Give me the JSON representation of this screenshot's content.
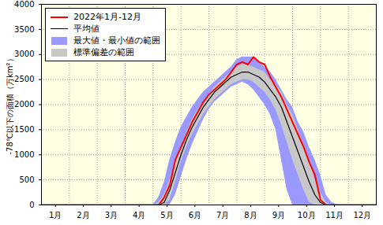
{
  "chart_data": {
    "type": "line",
    "y_label": "-78℃以下の面積（万km²）",
    "x": [
      0,
      4.0,
      4.2,
      4.4,
      4.6,
      4.8,
      5.0,
      5.2,
      5.4,
      5.6,
      5.8,
      6.0,
      6.2,
      6.4,
      6.6,
      6.8,
      7.0,
      7.2,
      7.4,
      7.6,
      7.8,
      8.0,
      8.2,
      8.4,
      8.6,
      8.8,
      9.0,
      9.2,
      9.4,
      9.6,
      9.8,
      10.0,
      10.2,
      10.4,
      10.6,
      12
    ],
    "xlim": [
      0,
      12
    ],
    "xticks": [
      {
        "value": 0.5,
        "label": "1月"
      },
      {
        "value": 1.5,
        "label": "2月"
      },
      {
        "value": 2.5,
        "label": "3月"
      },
      {
        "value": 3.5,
        "label": "4月"
      },
      {
        "value": 4.5,
        "label": "5月"
      },
      {
        "value": 5.5,
        "label": "6月"
      },
      {
        "value": 6.5,
        "label": "7月"
      },
      {
        "value": 7.5,
        "label": "8月"
      },
      {
        "value": 8.5,
        "label": "9月"
      },
      {
        "value": 9.5,
        "label": "10月"
      },
      {
        "value": 10.5,
        "label": "11月"
      },
      {
        "value": 11.5,
        "label": "12月"
      }
    ],
    "ylim": [
      0,
      4000
    ],
    "yticks": [
      0,
      500,
      1000,
      1500,
      2000,
      2500,
      3000,
      3500,
      4000
    ],
    "grid": true,
    "legend": "top-left",
    "series": [
      {
        "name": "最大値・最小値の範囲",
        "type": "area",
        "color": "#9999ff",
        "low": [
          0,
          0,
          0,
          0,
          0,
          200,
          550,
          900,
          1200,
          1450,
          1700,
          1900,
          2050,
          2150,
          2250,
          2350,
          2400,
          2450,
          2400,
          2300,
          2150,
          2000,
          1800,
          1500,
          900,
          300,
          0,
          0,
          0,
          0,
          0,
          0,
          0,
          0,
          0,
          0
        ],
        "high": [
          0,
          0,
          150,
          450,
          900,
          1250,
          1550,
          1750,
          1950,
          2100,
          2250,
          2350,
          2450,
          2550,
          2650,
          2750,
          2900,
          2950,
          2950,
          2950,
          2850,
          2750,
          2650,
          2500,
          2300,
          2100,
          1950,
          1650,
          1450,
          1150,
          900,
          600,
          200,
          50,
          0,
          0
        ]
      },
      {
        "name": "標準偏差の範囲",
        "type": "area",
        "color": "#c8c8c8",
        "low": [
          0,
          0,
          0,
          0,
          100,
          450,
          850,
          1150,
          1400,
          1600,
          1800,
          1950,
          2100,
          2200,
          2300,
          2400,
          2450,
          2500,
          2500,
          2450,
          2350,
          2250,
          2100,
          1900,
          1600,
          1250,
          900,
          600,
          300,
          50,
          0,
          0,
          0,
          0,
          0,
          0
        ],
        "high": [
          0,
          0,
          50,
          200,
          500,
          850,
          1150,
          1450,
          1700,
          1900,
          2050,
          2200,
          2350,
          2450,
          2550,
          2650,
          2750,
          2800,
          2800,
          2750,
          2700,
          2650,
          2500,
          2400,
          2250,
          2000,
          1800,
          1500,
          1200,
          900,
          500,
          250,
          50,
          0,
          0,
          0
        ]
      },
      {
        "name": "平均値",
        "type": "line",
        "color": "#000000",
        "values": [
          0,
          0,
          0,
          50,
          300,
          650,
          1000,
          1300,
          1550,
          1750,
          1950,
          2100,
          2250,
          2350,
          2450,
          2550,
          2600,
          2650,
          2650,
          2600,
          2550,
          2450,
          2300,
          2150,
          1950,
          1650,
          1350,
          1050,
          750,
          450,
          200,
          50,
          0,
          0,
          0,
          0
        ]
      },
      {
        "name": "2022年1月-12月",
        "type": "line",
        "color": "#ff0000",
        "values": [
          0,
          0,
          0,
          150,
          400,
          900,
          1150,
          1400,
          1650,
          1850,
          2050,
          2200,
          2300,
          2400,
          2500,
          2650,
          2800,
          2850,
          2800,
          2950,
          2850,
          2800,
          2550,
          2350,
          2150,
          1900,
          1650,
          1400,
          1150,
          850,
          600,
          100,
          0,
          0,
          0,
          0
        ]
      }
    ],
    "legend_order": [
      "2022年1月-12月",
      "平均値",
      "最大値・最小値の範囲",
      "標準偏差の範囲"
    ]
  }
}
